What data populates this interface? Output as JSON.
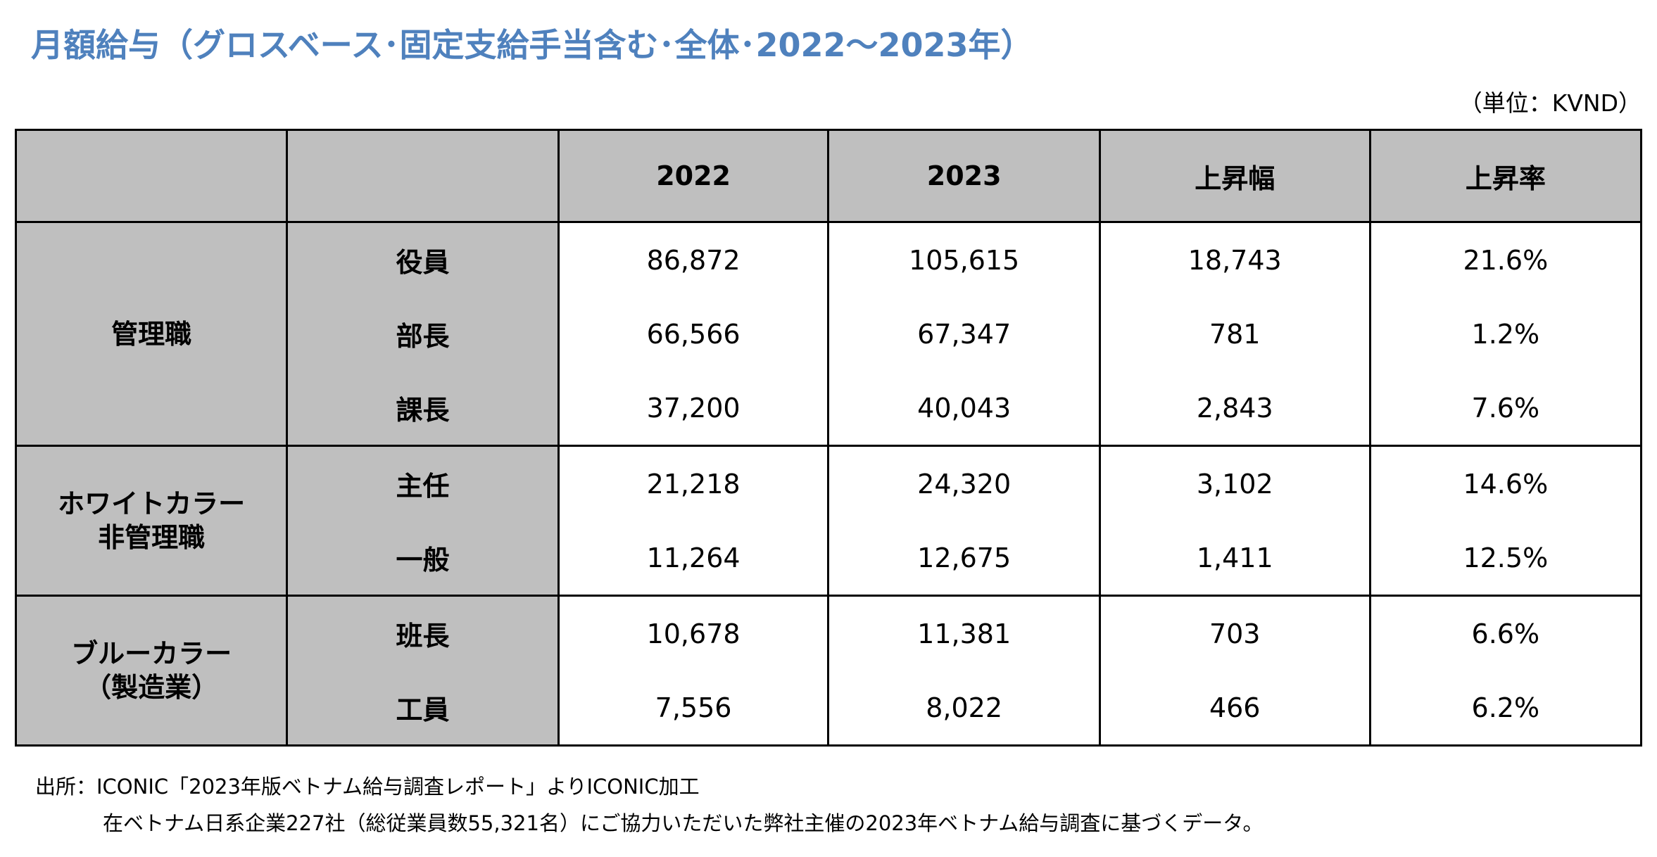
{
  "title": "月額給与（グロスベース･固定支給手当含む･全体･2022～2023年）",
  "unit": "（単位：KVND）",
  "table": {
    "headers": [
      "",
      "",
      "2022",
      "2023",
      "上昇幅",
      "上昇率"
    ],
    "groups": [
      {
        "name_lines": [
          "管理職"
        ],
        "rows": [
          {
            "role": "役員",
            "v2022": "86,872",
            "v2023": "105,615",
            "increase": "18,743",
            "rate": "21.6%"
          },
          {
            "role": "部長",
            "v2022": "66,566",
            "v2023": "67,347",
            "increase": "781",
            "rate": "1.2%"
          },
          {
            "role": "課長",
            "v2022": "37,200",
            "v2023": "40,043",
            "increase": "2,843",
            "rate": "7.6%"
          }
        ]
      },
      {
        "name_lines": [
          "ホワイトカラー",
          "非管理職"
        ],
        "rows": [
          {
            "role": "主任",
            "v2022": "21,218",
            "v2023": "24,320",
            "increase": "3,102",
            "rate": "14.6%"
          },
          {
            "role": "一般",
            "v2022": "11,264",
            "v2023": "12,675",
            "increase": "1,411",
            "rate": "12.5%"
          }
        ]
      },
      {
        "name_lines": [
          "ブルーカラー",
          "（製造業）"
        ],
        "rows": [
          {
            "role": "班長",
            "v2022": "10,678",
            "v2023": "11,381",
            "increase": "703",
            "rate": "6.6%"
          },
          {
            "role": "工員",
            "v2022": "7,556",
            "v2023": "8,022",
            "increase": "466",
            "rate": "6.2%"
          }
        ]
      }
    ]
  },
  "source": {
    "line1": "出所：ICONIC「2023年版ベトナム給与調査レポート」よりICONIC加工",
    "line2": "在ベトナム日系企業227社（総従業員数55,321名）にご協力いただいた弊社主催の2023年ベトナム給与調査に基づくデータ。"
  },
  "colors": {
    "title": "#4f81bd",
    "header_bg": "#bfbfbf",
    "border": "#000000"
  }
}
